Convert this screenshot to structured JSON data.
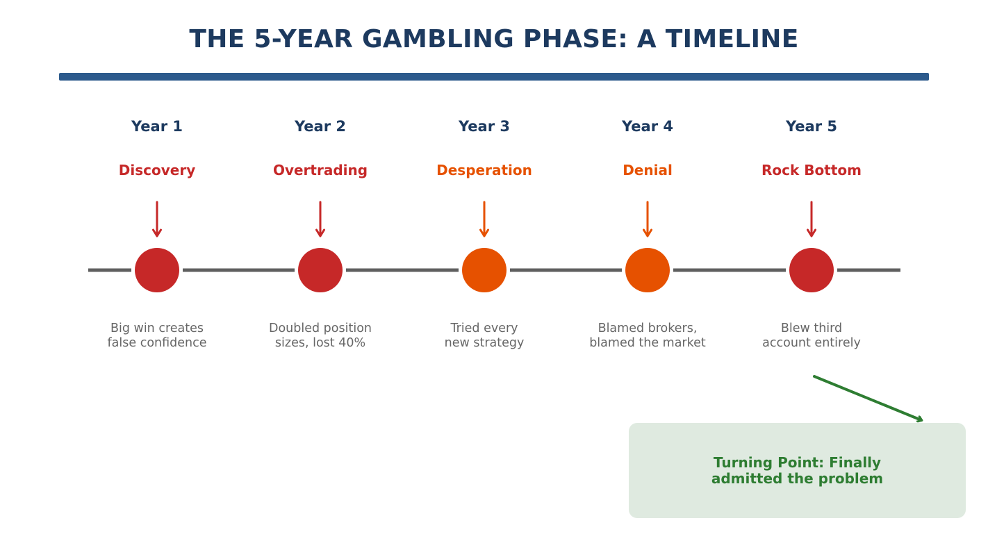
{
  "title": "THE 5-YEAR GAMBLING PHASE: A TIMELINE",
  "colors": {
    "title": "#1d3a5f",
    "rule": "#2c5a8c",
    "line": "#5f5f5f",
    "red": "#c62828",
    "orange": "#e65100",
    "green": "#2e7d32",
    "callout_bg": "#dfeae0",
    "desc": "#666666"
  },
  "events": [
    {
      "year": "Year 1",
      "phase": "Discovery",
      "description": "Big win creates\nfalse confidence",
      "color": "#c62828"
    },
    {
      "year": "Year 2",
      "phase": "Overtrading",
      "description": "Doubled position\nsizes, lost 40%",
      "color": "#c62828"
    },
    {
      "year": "Year 3",
      "phase": "Desperation",
      "description": "Tried every\nnew strategy",
      "color": "#e65100"
    },
    {
      "year": "Year 4",
      "phase": "Denial",
      "description": "Blamed brokers,\nblamed the market",
      "color": "#e65100"
    },
    {
      "year": "Year 5",
      "phase": "Rock Bottom",
      "description": "Blew third\naccount entirely",
      "color": "#c62828"
    }
  ],
  "callout": {
    "text": "Turning Point: Finally\nadmitted the problem"
  }
}
